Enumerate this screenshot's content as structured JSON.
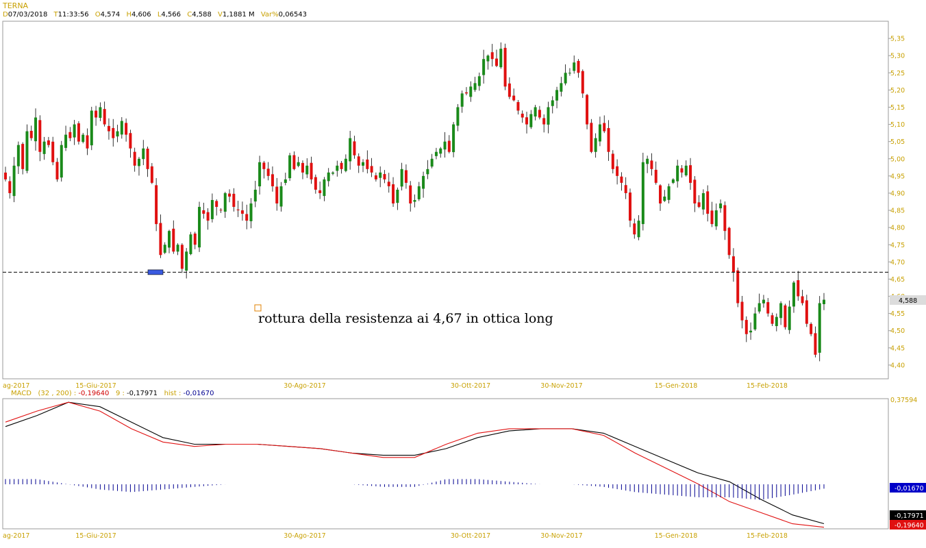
{
  "header": {
    "symbol": "TERNA",
    "date_label": "D",
    "date": "07/03/2018",
    "time_label": "T",
    "time": "11:33:56",
    "open_label": "O",
    "open": "4,574",
    "high_label": "H",
    "high": "4,606",
    "low_label": "L",
    "low": "4,566",
    "close_label": "C",
    "close": "4,588",
    "volume_label": "V",
    "volume": "1,1881 M",
    "var_label": "Var%",
    "var": "0,06543"
  },
  "macd_header": {
    "name": "MACD",
    "params": "(32 , 200) :",
    "macd_value": "-0,19640",
    "signal_label": "9 :",
    "signal_value": "-0,17971",
    "hist_label": "hist :",
    "hist_value": "-0,01670"
  },
  "colors": {
    "up": "#1a8a1a",
    "down": "#e01010",
    "accent": "#c8a000",
    "hist": "#000090"
  },
  "annotation": {
    "text": "rottura della resistenza ai 4,67 in ottica long",
    "resistance": 4.67
  },
  "current_price_label": "4,588",
  "macd_axis": {
    "top_label": "0,37594",
    "hist_label": "-0,01670",
    "signal_label": "-0,17971",
    "macd_label": "-0,19640"
  },
  "chart_data": [
    {
      "type": "candlestick",
      "title": "TERNA",
      "ylim": [
        4.36,
        5.4
      ],
      "y_ticks": [
        "5,35",
        "5,30",
        "5,25",
        "5,20",
        "5,15",
        "5,10",
        "5,05",
        "5,00",
        "4,95",
        "4,90",
        "4,85",
        "4,80",
        "4,75",
        "4,70",
        "4,65",
        "4,60",
        "4,55",
        "4,50",
        "4,45",
        "4,40"
      ],
      "x_tick_labels": [
        "ag-2017",
        "15-Giu-2017",
        "30-Ago-2017",
        "30-Ott-2017",
        "30-Nov-2017",
        "15-Gen-2018",
        "15-Feb-2018"
      ],
      "resistance_line": 4.67,
      "close": [
        4.94,
        4.9,
        4.98,
        5.04,
        4.97,
        5.08,
        5.06,
        5.12,
        5.02,
        5.05,
        5.04,
        4.99,
        4.94,
        5.04,
        5.07,
        5.06,
        5.1,
        5.05,
        5.07,
        5.03,
        5.14,
        5.12,
        5.15,
        5.1,
        5.08,
        5.06,
        5.08,
        5.11,
        5.07,
        5.03,
        4.98,
        5.0,
        5.03,
        4.97,
        4.93,
        4.81,
        4.72,
        4.75,
        4.79,
        4.73,
        4.75,
        4.68,
        4.73,
        4.78,
        4.75,
        4.86,
        4.84,
        4.82,
        4.88,
        4.86,
        4.85,
        4.9,
        4.89,
        4.86,
        4.85,
        4.84,
        4.82,
        4.87,
        4.91,
        4.99,
        4.97,
        4.95,
        4.92,
        4.87,
        4.92,
        4.94,
        5.01,
        4.97,
        4.99,
        4.96,
        4.98,
        4.94,
        4.91,
        4.9,
        4.94,
        4.96,
        4.96,
        4.98,
        4.97,
        5.0,
        5.06,
        5.01,
        4.98,
        4.99,
        4.97,
        4.96,
        4.94,
        4.96,
        4.94,
        4.92,
        4.87,
        4.91,
        4.97,
        4.93,
        4.87,
        4.88,
        4.92,
        4.95,
        4.97,
        5.0,
        5.02,
        5.03,
        5.05,
        5.02,
        5.1,
        5.15,
        5.19,
        5.19,
        5.21,
        5.22,
        5.24,
        5.29,
        5.3,
        5.29,
        5.27,
        5.32,
        5.21,
        5.18,
        5.17,
        5.14,
        5.12,
        5.1,
        5.13,
        5.15,
        5.12,
        5.1,
        5.15,
        5.17,
        5.2,
        5.22,
        5.25,
        5.25,
        5.28,
        5.25,
        5.19,
        5.1,
        5.02,
        5.06,
        5.1,
        5.08,
        5.02,
        4.97,
        4.95,
        4.93,
        4.9,
        4.82,
        4.78,
        4.82,
        4.99,
        5.0,
        4.97,
        4.93,
        4.87,
        4.89,
        4.92,
        4.94,
        4.98,
        4.96,
        4.98,
        4.93,
        4.87,
        4.86,
        4.9,
        4.84,
        4.81,
        4.85,
        4.87,
        4.79,
        4.72,
        4.67,
        4.58,
        4.53,
        4.49,
        4.5,
        4.55,
        4.58,
        4.59,
        4.55,
        4.52,
        4.54,
        4.58,
        4.51,
        4.57,
        4.64,
        4.6,
        4.58,
        4.52,
        4.49,
        4.43,
        4.58,
        4.59
      ]
    },
    {
      "type": "line",
      "title": "MACD (32 , 200)",
      "ylim": [
        -0.2,
        0.38
      ],
      "series": [
        {
          "name": "MACD",
          "values": [
            0.28,
            0.33,
            0.37,
            0.33,
            0.25,
            0.19,
            0.17,
            0.18,
            0.18,
            0.17,
            0.16,
            0.14,
            0.12,
            0.12,
            0.18,
            0.23,
            0.25,
            0.25,
            0.25,
            0.22,
            0.14,
            0.07,
            0.0,
            -0.08,
            -0.13,
            -0.18,
            -0.196
          ]
        },
        {
          "name": "9",
          "values": [
            0.26,
            0.31,
            0.37,
            0.35,
            0.28,
            0.21,
            0.18,
            0.18,
            0.18,
            0.17,
            0.16,
            0.14,
            0.13,
            0.13,
            0.16,
            0.21,
            0.24,
            0.25,
            0.25,
            0.23,
            0.17,
            0.11,
            0.05,
            0.01,
            -0.07,
            -0.14,
            -0.17971
          ]
        },
        {
          "name": "hist",
          "values": [
            0.02,
            0.02,
            0.0,
            -0.02,
            -0.03,
            -0.02,
            -0.01,
            0.0,
            0.0,
            0.0,
            0.0,
            0.0,
            -0.01,
            -0.01,
            0.02,
            0.02,
            0.01,
            0.0,
            0.0,
            -0.01,
            -0.03,
            -0.04,
            -0.05,
            -0.05,
            -0.06,
            -0.04,
            -0.0167
          ]
        }
      ]
    }
  ]
}
